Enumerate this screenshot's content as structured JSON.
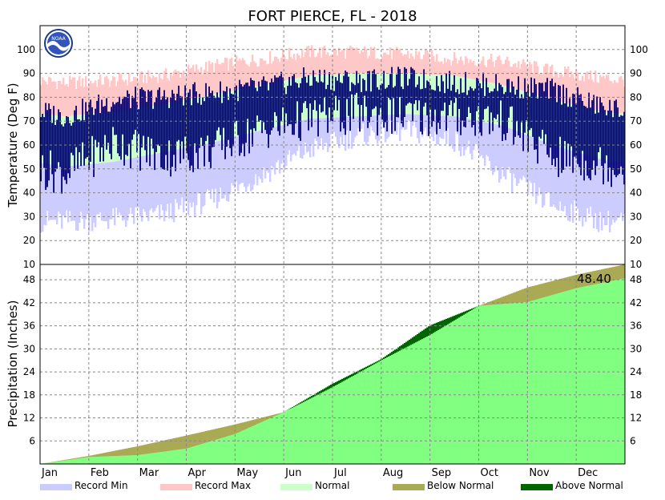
{
  "chart_data": {
    "type": "area",
    "title": "FORT PIERCE, FL - 2018",
    "logo_text": "NOAA",
    "months": [
      "Jan",
      "Feb",
      "Mar",
      "Apr",
      "May",
      "Jun",
      "Jul",
      "Aug",
      "Sep",
      "Oct",
      "Nov",
      "Dec"
    ],
    "temperature": {
      "ylabel": "Temperature (Deg F)",
      "ylim": [
        10,
        110
      ],
      "ticks": [
        100,
        90,
        80,
        70,
        60,
        50,
        40,
        30,
        20,
        10
      ],
      "series_colors": {
        "record_min": "#ccccff",
        "record_max": "#ffc8c8",
        "normal": "#ccffcc",
        "observed": "#000080"
      },
      "monthly": {
        "record_max": [
          86,
          87,
          89,
          93,
          96,
          99,
          99,
          98,
          96,
          95,
          91,
          88
        ],
        "normal_high": [
          72,
          74,
          77,
          81,
          85,
          89,
          90,
          90,
          89,
          85,
          79,
          74
        ],
        "normal_low": [
          51,
          53,
          57,
          61,
          66,
          71,
          72,
          73,
          72,
          68,
          60,
          54
        ],
        "record_min": [
          28,
          29,
          31,
          37,
          47,
          58,
          64,
          66,
          62,
          47,
          35,
          28
        ],
        "observed_high": [
          72,
          79,
          80,
          82,
          84,
          88,
          87,
          88,
          86,
          85,
          83,
          76
        ],
        "observed_low": [
          48,
          61,
          55,
          58,
          66,
          71,
          73,
          72,
          72,
          70,
          55,
          52
        ]
      }
    },
    "precipitation": {
      "ylabel": "Precipitation (Inches)",
      "ylim": [
        0,
        52
      ],
      "ticks": [
        48,
        42,
        36,
        30,
        24,
        18,
        12,
        6
      ],
      "total_label": "48.40",
      "series_colors": {
        "observed": "#80ff80",
        "below_normal": "#aaaa55",
        "above_normal": "#006400"
      },
      "normal_cumulative": [
        0,
        2.1,
        4.6,
        7.4,
        10.3,
        13.5,
        20.0,
        27.0,
        33.6,
        41.2,
        46.0,
        49.3,
        52.0
      ],
      "observed_cumulative": [
        0,
        1.8,
        2.3,
        4.0,
        7.8,
        13.5,
        20.9,
        27.3,
        36.1,
        41.2,
        42.2,
        45.8,
        48.4
      ]
    },
    "legend": [
      {
        "label": "Record Min",
        "color": "#ccccff"
      },
      {
        "label": "Record Max",
        "color": "#ffc8c8"
      },
      {
        "label": "Normal",
        "color": "#ccffcc"
      },
      {
        "label": "Below Normal",
        "color": "#aaaa55"
      },
      {
        "label": "Above Normal",
        "color": "#006400"
      }
    ]
  }
}
